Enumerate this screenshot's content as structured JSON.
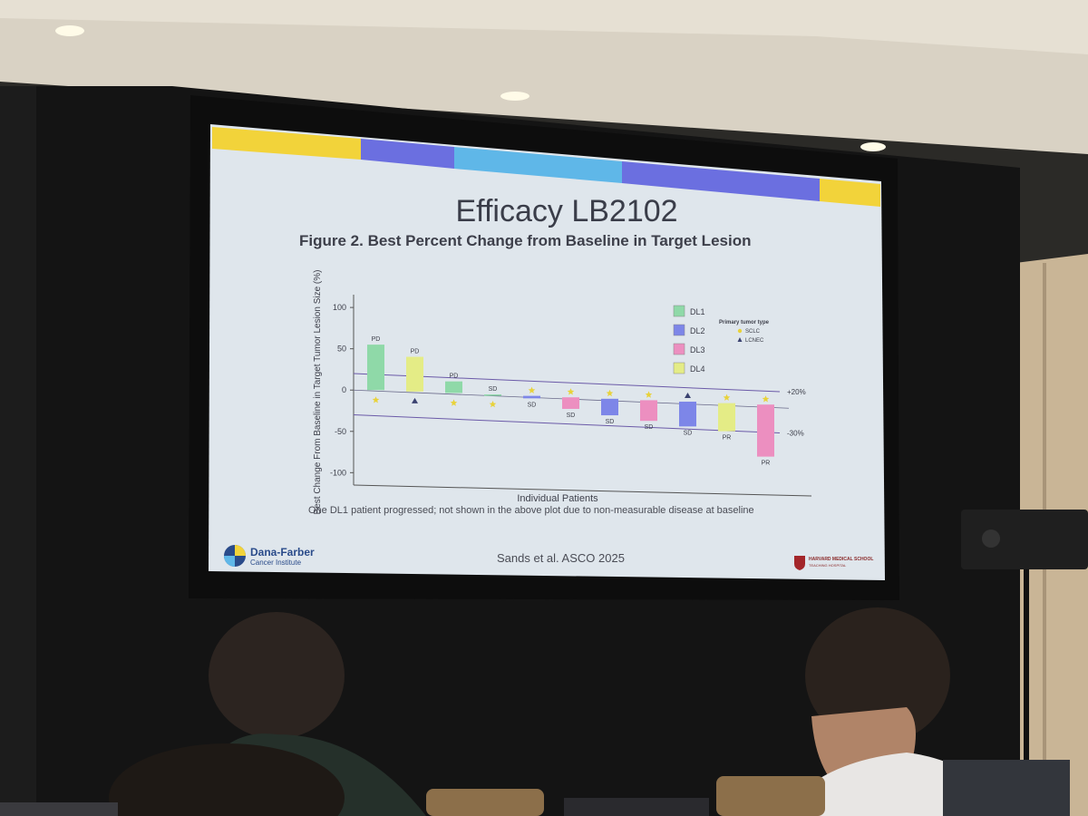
{
  "slide": {
    "title": "Efficacy LB2102",
    "subtitle": "Figure 2. Best Percent Change from Baseline in Target Lesion",
    "footnote": "One DL1 patient progressed; not shown in the above plot due to non-measurable disease at baseline",
    "citation": "Sands et al. ASCO 2025",
    "logo_left_name": "Dana-Farber",
    "logo_left_sub": "Cancer Institute",
    "logo_right_name": "HARVARD MEDICAL SCHOOL",
    "logo_right_sub": "TEACHING HOSPITAL",
    "banner_colors": [
      "#f2d33a",
      "#6b6fe0",
      "#5fb7e8",
      "#6b6fe0",
      "#f2d33a"
    ]
  },
  "chart_data": {
    "type": "bar",
    "xlabel": "Individual Patients",
    "ylabel": "Best Change From Baseline in Target Tumor Lesion Size (%)",
    "ylim": [
      -100,
      100
    ],
    "yticks": [
      100,
      50,
      0,
      -50,
      -100
    ],
    "reference_lines": [
      {
        "value": 20,
        "label": "+20%"
      },
      {
        "value": -30,
        "label": "-30%"
      }
    ],
    "dose_levels": [
      {
        "name": "DL1",
        "color": "#8fd9a8"
      },
      {
        "name": "DL2",
        "color": "#7d86e8"
      },
      {
        "name": "DL3",
        "color": "#ec8fc0"
      },
      {
        "name": "DL4",
        "color": "#e4ec86"
      }
    ],
    "tumor_type_legend_title": "Primary tumor type",
    "tumor_types": [
      {
        "name": "SCLC",
        "marker": "star"
      },
      {
        "name": "LCNEC",
        "marker": "triangle"
      }
    ],
    "patients": [
      {
        "value": 55,
        "dose_level": "DL1",
        "response": "PD",
        "tumor": "SCLC"
      },
      {
        "value": 42,
        "dose_level": "DL4",
        "response": "PD",
        "tumor": "LCNEC"
      },
      {
        "value": 14,
        "dose_level": "DL1",
        "response": "PD",
        "tumor": "SCLC"
      },
      {
        "value": 0,
        "dose_level": "DL1",
        "response": "SD",
        "tumor": "SCLC"
      },
      {
        "value": -3,
        "dose_level": "DL2",
        "response": "SD",
        "tumor": "SCLC"
      },
      {
        "value": -14,
        "dose_level": "DL3",
        "response": "SD",
        "tumor": "SCLC"
      },
      {
        "value": -20,
        "dose_level": "DL2",
        "response": "SD",
        "tumor": "SCLC"
      },
      {
        "value": -25,
        "dose_level": "DL3",
        "response": "SD",
        "tumor": "SCLC"
      },
      {
        "value": -30,
        "dose_level": "DL2",
        "response": "SD",
        "tumor": "LCNEC"
      },
      {
        "value": -34,
        "dose_level": "DL4",
        "response": "PR",
        "tumor": "SCLC"
      },
      {
        "value": -63,
        "dose_level": "DL3",
        "response": "PR",
        "tumor": "SCLC"
      }
    ]
  }
}
